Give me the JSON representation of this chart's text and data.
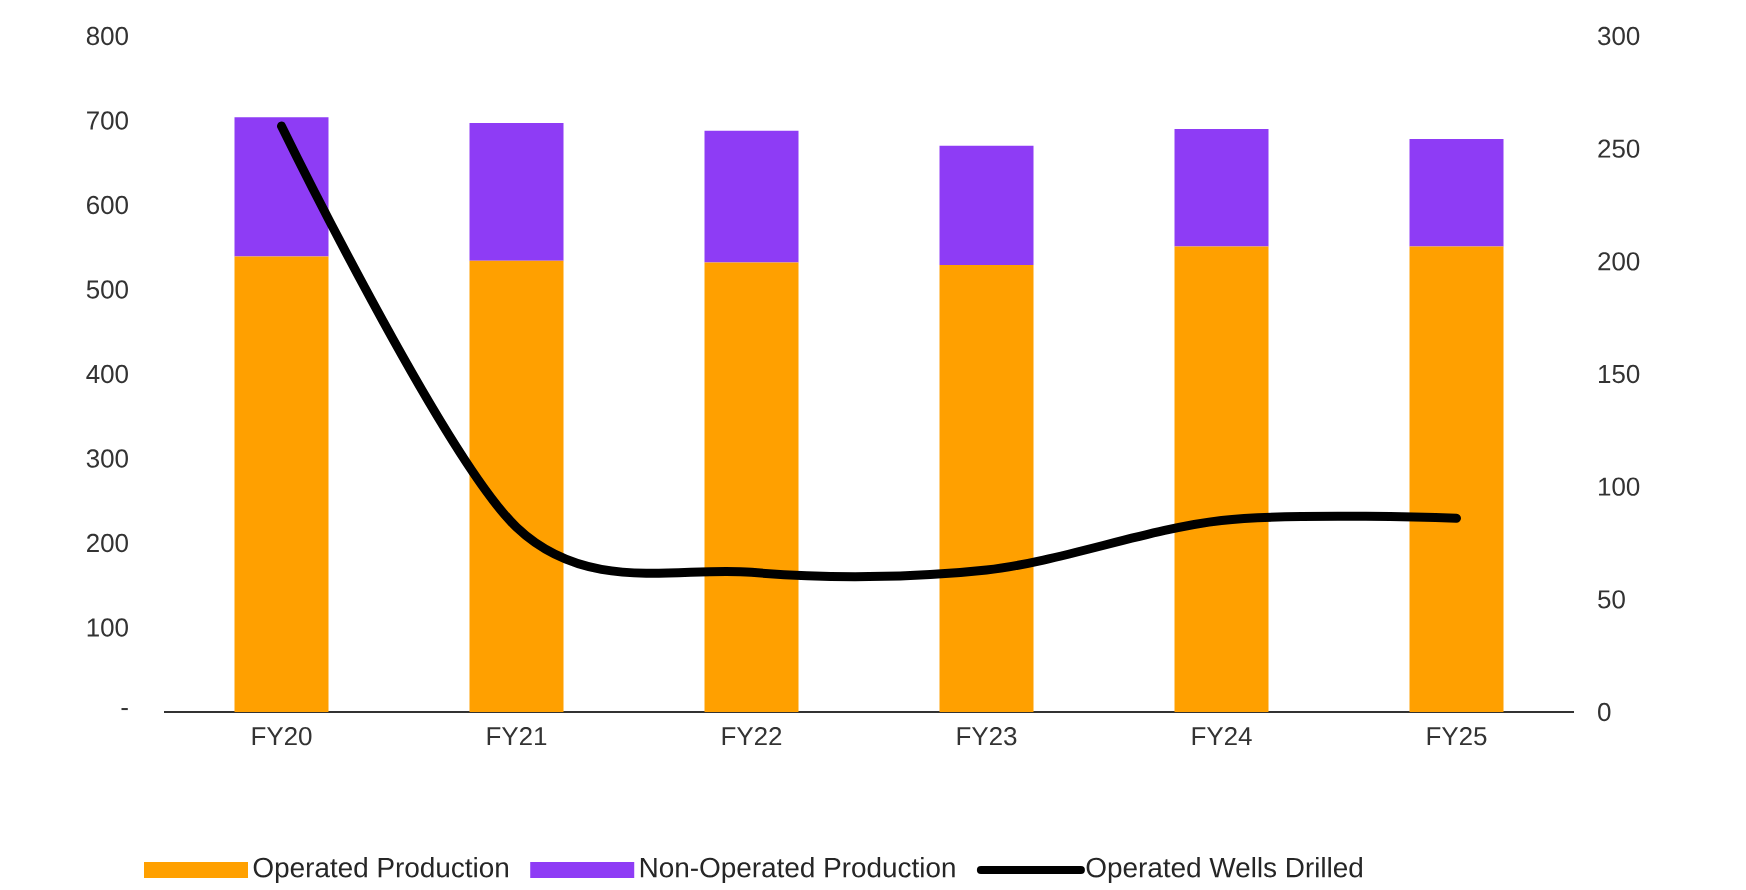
{
  "chart_data": {
    "type": "bar",
    "stacked": true,
    "categories": [
      "FY20",
      "FY21",
      "FY22",
      "FY23",
      "FY24",
      "FY25"
    ],
    "series": [
      {
        "name": "Operated Production",
        "color": "#ffa000",
        "values": [
          539,
          534,
          532,
          529,
          551,
          551
        ]
      },
      {
        "name": "Non-Operated Production",
        "color": "#8e3cf5",
        "values": [
          165,
          163,
          156,
          141,
          139,
          127
        ]
      },
      {
        "name": "Operated Wells Drilled",
        "type": "line",
        "axis": "y2",
        "color": "#000000",
        "values": [
          260,
          82,
          62,
          63,
          85,
          86
        ]
      }
    ],
    "ylim": [
      0,
      800
    ],
    "yticks": [
      {
        "value": 0,
        "label": "-"
      },
      100,
      200,
      300,
      400,
      500,
      600,
      700,
      800
    ],
    "y2lim": [
      0,
      300
    ],
    "y2ticks": [
      0,
      50,
      100,
      150,
      200,
      250,
      300
    ],
    "grid": false,
    "legend": "bottom"
  }
}
